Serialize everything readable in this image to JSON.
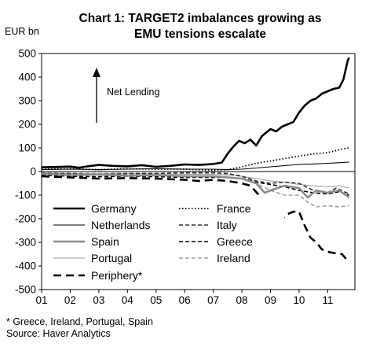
{
  "title_line1": "Chart 1: TARGET2 imbalances growing as",
  "title_line2": "EMU tensions  escalate",
  "unit_label": "EUR bn",
  "annotation": "Net Lending",
  "footnote_line1": "* Greece, Ireland, Portugal,  Spain",
  "footnote_line2": "Source: Haver Analytics",
  "chart_data": {
    "type": "line",
    "title": "Chart 1: TARGET2 imbalances growing as EMU tensions  escalate",
    "ylabel": "EUR bn",
    "xlabel": "",
    "ylim": [
      -500,
      500
    ],
    "xlim": [
      2001.0,
      2011.95
    ],
    "yticks": [
      500,
      400,
      300,
      200,
      100,
      0,
      -100,
      -200,
      -300,
      -400,
      -500
    ],
    "xtick_labels": [
      "01",
      "02",
      "03",
      "04",
      "05",
      "06",
      "07",
      "08",
      "09",
      "10",
      "11"
    ],
    "grid": false,
    "legend_position": "bottom-left, inside plot",
    "annotation": "Net Lending",
    "series": [
      {
        "name": "Germany",
        "style": "thick-solid",
        "color": "#000000",
        "points": [
          [
            2001.0,
            18
          ],
          [
            2001.5,
            19
          ],
          [
            2002.0,
            21
          ],
          [
            2002.3,
            16
          ],
          [
            2002.6,
            22
          ],
          [
            2003.0,
            28
          ],
          [
            2003.5,
            24
          ],
          [
            2004.0,
            22
          ],
          [
            2004.5,
            27
          ],
          [
            2005.0,
            20
          ],
          [
            2005.5,
            24
          ],
          [
            2006.0,
            30
          ],
          [
            2006.5,
            28
          ],
          [
            2007.0,
            32
          ],
          [
            2007.3,
            38
          ],
          [
            2007.5,
            75
          ],
          [
            2007.7,
            105
          ],
          [
            2007.9,
            130
          ],
          [
            2008.1,
            120
          ],
          [
            2008.3,
            135
          ],
          [
            2008.5,
            110
          ],
          [
            2008.7,
            150
          ],
          [
            2008.9,
            170
          ],
          [
            2009.0,
            180
          ],
          [
            2009.2,
            170
          ],
          [
            2009.4,
            190
          ],
          [
            2009.6,
            200
          ],
          [
            2009.8,
            210
          ],
          [
            2010.0,
            250
          ],
          [
            2010.2,
            280
          ],
          [
            2010.4,
            300
          ],
          [
            2010.6,
            310
          ],
          [
            2010.8,
            330
          ],
          [
            2011.0,
            340
          ],
          [
            2011.2,
            350
          ],
          [
            2011.4,
            355
          ],
          [
            2011.55,
            390
          ],
          [
            2011.7,
            470
          ],
          [
            2011.75,
            482
          ]
        ]
      },
      {
        "name": "France",
        "style": "dotted",
        "color": "#000000",
        "points": [
          [
            2001.0,
            10
          ],
          [
            2002.0,
            12
          ],
          [
            2003.0,
            8
          ],
          [
            2004.0,
            12
          ],
          [
            2005.0,
            10
          ],
          [
            2006.0,
            10
          ],
          [
            2007.0,
            5
          ],
          [
            2007.5,
            8
          ],
          [
            2008.0,
            20
          ],
          [
            2008.5,
            35
          ],
          [
            2009.0,
            45
          ],
          [
            2009.5,
            55
          ],
          [
            2010.0,
            65
          ],
          [
            2010.5,
            75
          ],
          [
            2011.0,
            80
          ],
          [
            2011.5,
            95
          ],
          [
            2011.75,
            100
          ]
        ]
      },
      {
        "name": "Netherlands",
        "style": "thin-solid",
        "color": "#000000",
        "points": [
          [
            2001.0,
            8
          ],
          [
            2002.0,
            10
          ],
          [
            2003.0,
            8
          ],
          [
            2004.0,
            10
          ],
          [
            2005.0,
            12
          ],
          [
            2006.0,
            10
          ],
          [
            2007.0,
            10
          ],
          [
            2007.5,
            8
          ],
          [
            2008.0,
            10
          ],
          [
            2008.5,
            15
          ],
          [
            2009.0,
            20
          ],
          [
            2009.5,
            25
          ],
          [
            2010.0,
            30
          ],
          [
            2010.5,
            32
          ],
          [
            2011.0,
            35
          ],
          [
            2011.5,
            38
          ],
          [
            2011.75,
            40
          ]
        ]
      },
      {
        "name": "Italy",
        "style": "dashed",
        "color": "#333333",
        "points": [
          [
            2001.0,
            -8
          ],
          [
            2002.0,
            -10
          ],
          [
            2003.0,
            -12
          ],
          [
            2004.0,
            -10
          ],
          [
            2005.0,
            -8
          ],
          [
            2006.0,
            -5
          ],
          [
            2007.0,
            -5
          ],
          [
            2007.5,
            -8
          ],
          [
            2008.0,
            -20
          ],
          [
            2008.5,
            -40
          ],
          [
            2009.0,
            -50
          ],
          [
            2009.5,
            -45
          ],
          [
            2010.0,
            -50
          ],
          [
            2010.5,
            -80
          ],
          [
            2011.0,
            -90
          ],
          [
            2011.3,
            -70
          ],
          [
            2011.75,
            -95
          ]
        ]
      },
      {
        "name": "Spain",
        "style": "thick-solid",
        "color": "#8a8a8a",
        "points": [
          [
            2001.0,
            -10
          ],
          [
            2002.0,
            -15
          ],
          [
            2003.0,
            -12
          ],
          [
            2004.0,
            -18
          ],
          [
            2005.0,
            -15
          ],
          [
            2006.0,
            -20
          ],
          [
            2007.0,
            -20
          ],
          [
            2007.5,
            -25
          ],
          [
            2008.0,
            -30
          ],
          [
            2008.5,
            -50
          ],
          [
            2008.8,
            -90
          ],
          [
            2009.0,
            -80
          ],
          [
            2009.5,
            -60
          ],
          [
            2010.0,
            -70
          ],
          [
            2010.3,
            -110
          ],
          [
            2010.6,
            -80
          ],
          [
            2011.0,
            -90
          ],
          [
            2011.4,
            -80
          ],
          [
            2011.75,
            -110
          ]
        ]
      },
      {
        "name": "Greece",
        "style": "dashed",
        "color": "#000000",
        "points": [
          [
            2001.0,
            -15
          ],
          [
            2002.0,
            -20
          ],
          [
            2003.0,
            -22
          ],
          [
            2004.0,
            -20
          ],
          [
            2005.0,
            -22
          ],
          [
            2006.0,
            -25
          ],
          [
            2007.0,
            -25
          ],
          [
            2007.5,
            -25
          ],
          [
            2008.0,
            -30
          ],
          [
            2008.5,
            -45
          ],
          [
            2009.0,
            -55
          ],
          [
            2009.5,
            -65
          ],
          [
            2010.0,
            -80
          ],
          [
            2010.5,
            -90
          ],
          [
            2011.0,
            -95
          ],
          [
            2011.4,
            -85
          ],
          [
            2011.75,
            -100
          ]
        ]
      },
      {
        "name": "Portugal",
        "style": "thin-solid",
        "color": "#9a9a9a",
        "points": [
          [
            2001.0,
            -5
          ],
          [
            2002.0,
            -8
          ],
          [
            2003.0,
            -10
          ],
          [
            2004.0,
            -8
          ],
          [
            2005.0,
            -10
          ],
          [
            2006.0,
            -12
          ],
          [
            2007.0,
            -12
          ],
          [
            2007.5,
            -15
          ],
          [
            2008.0,
            -20
          ],
          [
            2008.5,
            -30
          ],
          [
            2009.0,
            -40
          ],
          [
            2009.5,
            -45
          ],
          [
            2010.0,
            -55
          ],
          [
            2010.5,
            -60
          ],
          [
            2011.0,
            -65
          ],
          [
            2011.4,
            -60
          ],
          [
            2011.75,
            -70
          ]
        ]
      },
      {
        "name": "Ireland",
        "style": "dashed",
        "color": "#a0a0a0",
        "points": [
          [
            2001.0,
            -5
          ],
          [
            2002.0,
            -6
          ],
          [
            2003.0,
            -8
          ],
          [
            2004.0,
            -6
          ],
          [
            2005.0,
            -8
          ],
          [
            2006.0,
            -10
          ],
          [
            2007.0,
            -10
          ],
          [
            2007.5,
            -12
          ],
          [
            2008.0,
            -20
          ],
          [
            2008.5,
            -50
          ],
          [
            2009.0,
            -80
          ],
          [
            2009.5,
            -100
          ],
          [
            2010.0,
            -100
          ],
          [
            2010.3,
            -130
          ],
          [
            2010.6,
            -150
          ],
          [
            2011.0,
            -145
          ],
          [
            2011.4,
            -150
          ],
          [
            2011.75,
            -145
          ]
        ]
      },
      {
        "name": "Periphery*",
        "style": "long-dash",
        "color": "#000000",
        "points": [
          [
            2001.0,
            -20
          ],
          [
            2002.0,
            -25
          ],
          [
            2003.0,
            -30
          ],
          [
            2004.0,
            -28
          ],
          [
            2005.0,
            -30
          ],
          [
            2006.0,
            -35
          ],
          [
            2006.5,
            -40
          ],
          [
            2007.0,
            -35
          ],
          [
            2007.5,
            -40
          ],
          [
            2008.0,
            -50
          ],
          [
            2008.3,
            -60
          ],
          [
            2008.6,
            -100
          ],
          [
            2008.8,
            -140
          ],
          [
            2009.0,
            -160
          ],
          [
            2009.2,
            -190
          ],
          [
            2009.4,
            -200
          ],
          [
            2009.6,
            -180
          ],
          [
            2009.8,
            -170
          ],
          [
            2010.0,
            -170
          ],
          [
            2010.2,
            -230
          ],
          [
            2010.4,
            -280
          ],
          [
            2010.6,
            -300
          ],
          [
            2010.8,
            -330
          ],
          [
            2011.0,
            -340
          ],
          [
            2011.2,
            -345
          ],
          [
            2011.5,
            -350
          ],
          [
            2011.75,
            -385
          ]
        ]
      }
    ]
  }
}
